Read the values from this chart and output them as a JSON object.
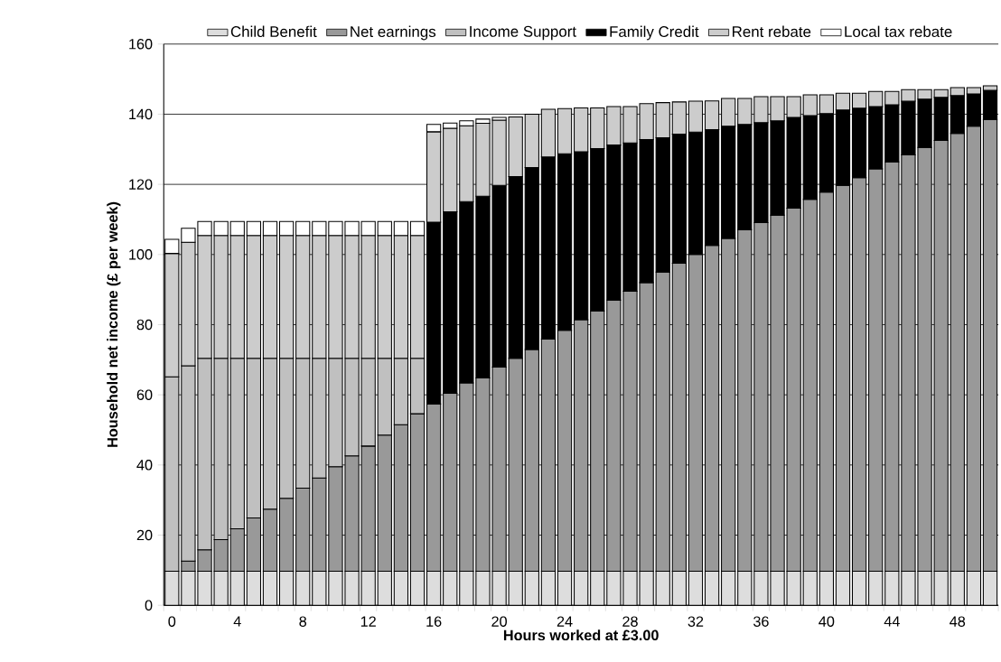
{
  "chart_data": {
    "type": "bar",
    "stacked": true,
    "xlabel": "Hours worked at £3.00",
    "ylabel": "Household net income (£ per week)",
    "categories": [
      "0",
      null,
      null,
      null,
      "4",
      null,
      null,
      null,
      "8",
      null,
      null,
      null,
      "12",
      null,
      null,
      null,
      "16",
      null,
      null,
      null,
      "20",
      null,
      null,
      null,
      "24",
      null,
      null,
      null,
      "28",
      null,
      null,
      null,
      "32",
      null,
      null,
      null,
      "36",
      null,
      null,
      null,
      "40",
      null,
      null,
      null,
      "44",
      null,
      null,
      null,
      "48",
      null,
      null
    ],
    "ylim": [
      0,
      160
    ],
    "yticks": [
      0,
      20,
      40,
      60,
      80,
      100,
      120,
      140,
      160
    ],
    "grid": "y",
    "legend": "top",
    "series": [
      {
        "name": "Child Benefit",
        "color": "#dddddd",
        "values": [
          9.7,
          9.7,
          9.7,
          9.7,
          9.7,
          9.7,
          9.7,
          9.7,
          9.7,
          9.7,
          9.7,
          9.7,
          9.7,
          9.7,
          9.7,
          9.7,
          9.7,
          9.7,
          9.7,
          9.7,
          9.7,
          9.7,
          9.7,
          9.7,
          9.7,
          9.7,
          9.7,
          9.7,
          9.7,
          9.7,
          9.7,
          9.7,
          9.7,
          9.7,
          9.7,
          9.7,
          9.7,
          9.7,
          9.7,
          9.7,
          9.7,
          9.7,
          9.7,
          9.7,
          9.7,
          9.7,
          9.7,
          9.7,
          9.7,
          9.7,
          9.7
        ]
      },
      {
        "name": "Net earnings",
        "color": "#999999",
        "values": [
          null,
          2.9,
          6.1,
          9.0,
          12.1,
          15.2,
          17.7,
          20.8,
          23.7,
          26.6,
          29.8,
          32.9,
          35.7,
          38.8,
          41.8,
          44.9,
          47.7,
          50.7,
          53.7,
          55.1,
          58.2,
          60.7,
          63.2,
          66.2,
          68.7,
          71.7,
          74.2,
          77.3,
          79.8,
          82.3,
          85.3,
          87.8,
          90.3,
          92.9,
          94.9,
          97.4,
          99.4,
          101.5,
          103.5,
          106.0,
          108.1,
          110.0,
          112.2,
          114.7,
          116.7,
          118.7,
          120.8,
          122.8,
          124.8,
          126.9,
          128.8
        ]
      },
      {
        "name": "Income Support",
        "color": "#c0c0c0",
        "values": [
          55.4,
          55.7,
          54.6,
          51.7,
          48.6,
          45.5,
          43.0,
          39.9,
          37.0,
          34.1,
          30.9,
          27.8,
          25.0,
          21.9,
          18.9,
          15.8,
          null,
          null,
          null,
          null,
          null,
          null,
          null,
          null,
          null,
          null,
          null,
          null,
          null,
          null,
          null,
          null,
          null,
          null,
          null,
          null,
          null,
          null,
          null,
          null,
          null,
          null,
          null,
          null,
          null,
          null,
          null,
          null,
          null,
          null,
          null
        ]
      },
      {
        "name": "Family Credit",
        "color": "#000000",
        "values": [
          null,
          null,
          null,
          null,
          null,
          null,
          null,
          null,
          null,
          null,
          null,
          null,
          null,
          null,
          null,
          null,
          51.8,
          51.8,
          51.7,
          51.8,
          51.8,
          51.8,
          51.9,
          51.9,
          50.3,
          47.9,
          46.3,
          44.2,
          42.3,
          40.8,
          38.3,
          36.8,
          34.9,
          33.0,
          32.0,
          30.0,
          28.5,
          26.9,
          25.9,
          23.9,
          22.4,
          21.5,
          19.8,
          17.8,
          16.3,
          15.3,
          13.8,
          12.3,
          10.8,
          9.2,
          8.3
        ]
      },
      {
        "name": "Rent rebate",
        "color": "#cccccc",
        "values": [
          35.2,
          35.2,
          35.0,
          35.0,
          35.0,
          35.0,
          35.0,
          35.0,
          35.0,
          35.0,
          35.0,
          35.0,
          35.0,
          35.0,
          35.0,
          35.0,
          25.8,
          23.8,
          21.6,
          20.8,
          18.6,
          17.0,
          15.2,
          13.6,
          12.9,
          12.5,
          11.6,
          11.0,
          10.4,
          10.2,
          10.0,
          9.2,
          8.8,
          8.2,
          7.9,
          7.4,
          7.4,
          6.9,
          5.9,
          5.9,
          5.3,
          4.8,
          4.3,
          4.3,
          3.8,
          3.3,
          2.7,
          2.2,
          2.3,
          1.8,
          1.3
        ]
      },
      {
        "name": "Local tax rebate",
        "color": "#ffffff",
        "values": [
          4.0,
          4.0,
          4.0,
          4.0,
          4.0,
          4.0,
          4.0,
          4.0,
          4.0,
          4.0,
          4.0,
          4.0,
          4.0,
          4.0,
          4.0,
          4.0,
          2.1,
          1.5,
          1.4,
          1.2,
          0.8,
          null,
          null,
          null,
          null,
          null,
          null,
          null,
          null,
          null,
          null,
          null,
          null,
          null,
          null,
          null,
          null,
          null,
          null,
          null,
          null,
          null,
          null,
          null,
          null,
          null,
          null,
          null,
          null,
          null,
          null
        ]
      }
    ]
  }
}
